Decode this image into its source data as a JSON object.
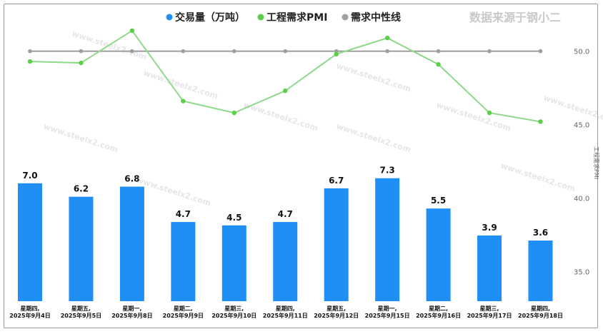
{
  "chart_data": {
    "type": "bar+line",
    "source_note": "数据来源于钢小二",
    "legend": [
      {
        "name": "交易量（万吨）",
        "color": "#1f8ef5"
      },
      {
        "name": "工程需求PMI",
        "color": "#5ccf4a"
      },
      {
        "name": "需求中性线",
        "color": "#9e9e9e"
      }
    ],
    "categories": [
      [
        "星期四,",
        "2025年9月4日"
      ],
      [
        "星期五,",
        "2025年9月5日"
      ],
      [
        "星期一,",
        "2025年9月8日"
      ],
      [
        "星期二,",
        "2025年9月9日"
      ],
      [
        "星期三,",
        "2025年9月10日"
      ],
      [
        "星期四,",
        "2025年9月11日"
      ],
      [
        "星期五,",
        "2025年9月12日"
      ],
      [
        "星期一,",
        "2025年9月15日"
      ],
      [
        "星期二,",
        "2025年9月16日"
      ],
      [
        "星期三,",
        "2025年9月17日"
      ],
      [
        "星期四,",
        "2025年9月18日"
      ]
    ],
    "bar_series": {
      "name": "交易量（万吨）",
      "values": [
        7.0,
        6.2,
        6.8,
        4.7,
        4.5,
        4.7,
        6.7,
        7.3,
        5.5,
        3.9,
        3.6
      ],
      "labels": [
        "7.0",
        "6.2",
        "6.8",
        "4.7",
        "4.5",
        "4.7",
        "6.7",
        "7.3",
        "5.5",
        "3.9",
        "3.6"
      ],
      "color": "#1f8ef5"
    },
    "pmi_series": {
      "name": "工程需求PMI",
      "values": [
        49.3,
        49.2,
        51.4,
        46.6,
        45.8,
        47.3,
        49.8,
        50.9,
        49.1,
        45.8,
        45.2
      ],
      "color": "#8ed88a",
      "marker_color": "#5ccf4a"
    },
    "neutral_series": {
      "name": "需求中性线",
      "value": 50,
      "color": "#9e9e9e"
    },
    "right_axis": {
      "title": "工程需求PMI",
      "ticks": [
        "50.0",
        "45.0",
        "40.0",
        "35.0"
      ],
      "tick_values": [
        50,
        45,
        40,
        35
      ],
      "range": [
        32,
        53
      ]
    },
    "left_axis_range": [
      0,
      8.5
    ],
    "grid": false
  }
}
